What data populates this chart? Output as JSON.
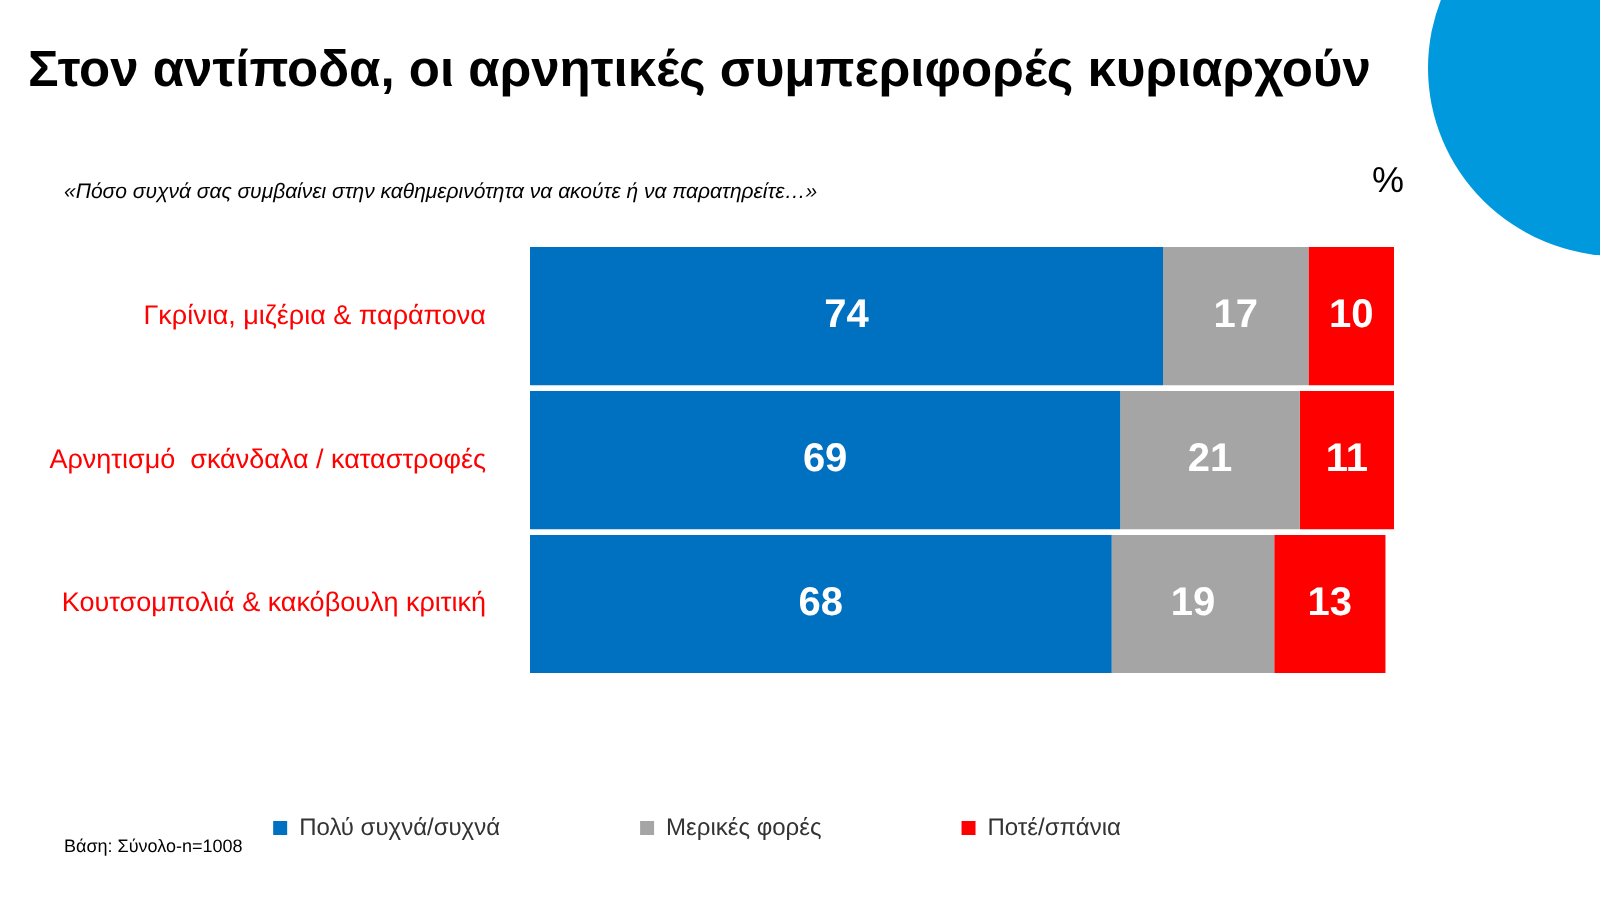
{
  "chart_data": {
    "type": "bar",
    "orientation": "horizontal",
    "stacked": true,
    "title": "Στον αντίποδα, οι αρνητικές συμπεριφορές κυριαρχούν",
    "subtitle": "«Πόσο συχνά σας συμβαίνει στην καθημερινότητα να ακούτε ή να παρατηρείτε…»",
    "categories": [
      "Γκρίνια, μιζέρια & παράπονα",
      "Αρνητισμό  σκάνδαλα / καταστροφές",
      "Κουτσομπολιά & κακόβουλη κριτική"
    ],
    "series": [
      {
        "name": "Πολύ συχνά/συχνά",
        "color": "#0070c0",
        "values": [
          74,
          69,
          68
        ]
      },
      {
        "name": "Μερικές φορές",
        "color": "#a5a5a5",
        "values": [
          17,
          21,
          19
        ]
      },
      {
        "name": "Ποτέ/σπάνια",
        "color": "#ff0000",
        "values": [
          10,
          11,
          13
        ]
      }
    ],
    "data_labels": true,
    "legend": "bottom",
    "grid": false,
    "annotations": [
      "%",
      "Βάση: Σύνολο-n=1008"
    ]
  }
}
